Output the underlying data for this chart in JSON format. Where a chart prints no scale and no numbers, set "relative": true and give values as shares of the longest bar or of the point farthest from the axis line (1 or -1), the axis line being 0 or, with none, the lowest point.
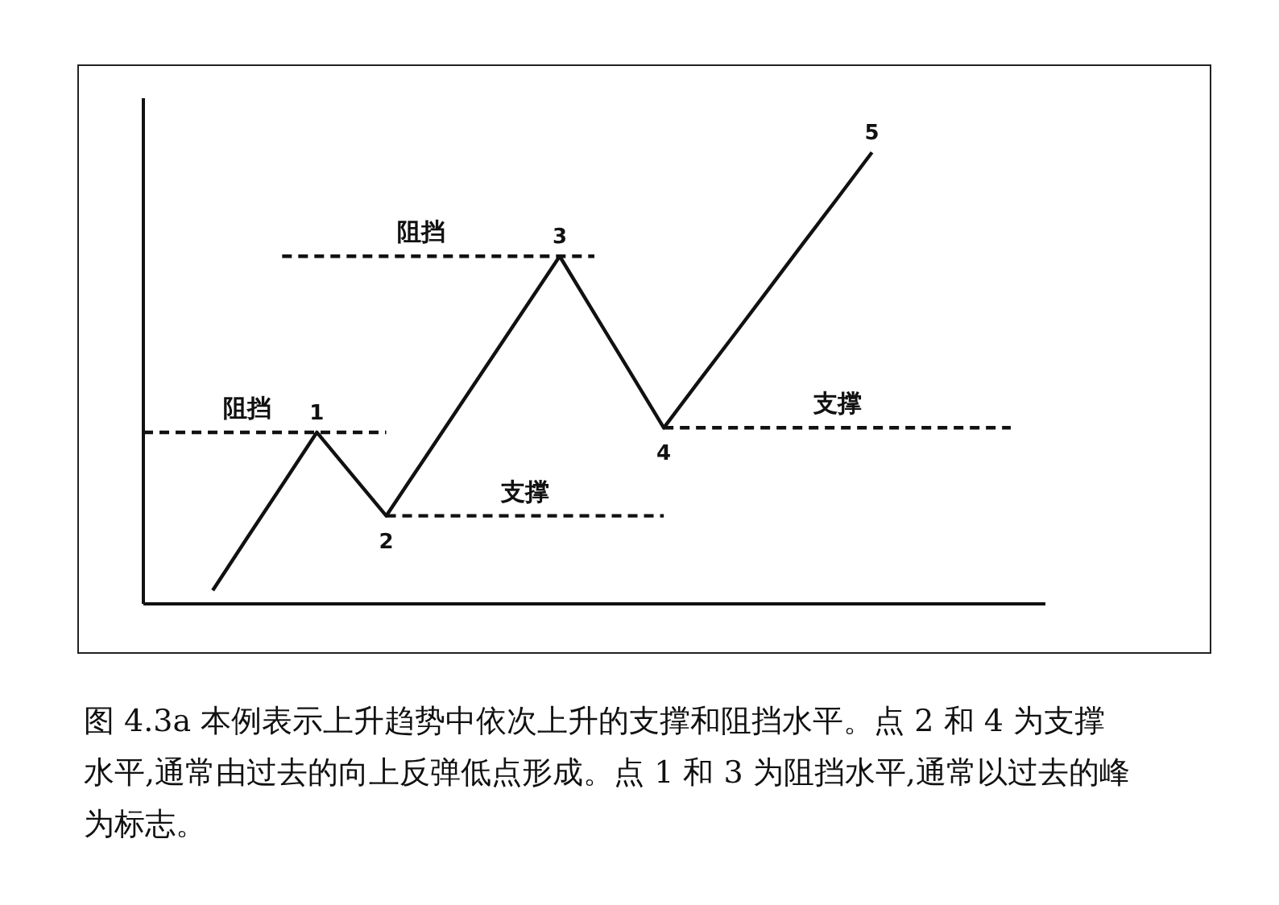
{
  "chart_data": {
    "type": "line",
    "relative": true,
    "grid": false,
    "legend": false,
    "marker": "none",
    "line_style": "solid",
    "categories": [
      null,
      null,
      null,
      null,
      null,
      null,
      null,
      null,
      null,
      null,
      null,
      null,
      null,
      null,
      null,
      null,
      null,
      null,
      null,
      null,
      null,
      null,
      null,
      null,
      null,
      null,
      null
    ],
    "series": [
      {
        "color": "#111111",
        "values": [
          null,
          null,
          0.03,
          0.147,
          0.263,
          0.38,
          0.2875,
          0.195,
          0.31,
          0.425,
          0.54,
          0.655,
          0.77,
          0.643,
          0.517,
          0.39,
          0.492,
          0.593,
          0.695,
          0.797,
          0.898,
          1,
          null,
          null,
          null,
          null,
          null
        ]
      },
      {
        "name": "阻挡",
        "color": "#111111",
        "line_style": "dashed",
        "values": [
          0.38,
          0.38,
          0.38,
          0.38,
          0.38,
          0.38,
          0.38,
          0.38,
          null,
          null,
          null,
          null,
          null,
          null,
          null,
          null,
          null,
          null,
          null,
          null,
          null,
          null,
          null,
          null,
          null,
          null,
          null
        ]
      },
      {
        "name": "阻挡",
        "color": "#111111",
        "line_style": "dashed",
        "values": [
          null,
          null,
          null,
          null,
          0.77,
          0.77,
          0.77,
          0.77,
          0.77,
          0.77,
          0.77,
          0.77,
          0.77,
          0.77,
          null,
          null,
          null,
          null,
          null,
          null,
          null,
          null,
          null,
          null,
          null,
          null,
          null
        ]
      },
      {
        "name": "支撑",
        "color": "#111111",
        "line_style": "dashed",
        "values": [
          null,
          null,
          null,
          null,
          null,
          null,
          null,
          0.195,
          0.195,
          0.195,
          0.195,
          0.195,
          0.195,
          0.195,
          0.195,
          0.195,
          null,
          null,
          null,
          null,
          null,
          null,
          null,
          null,
          null,
          null,
          null
        ]
      },
      {
        "name": "支撑",
        "color": "#111111",
        "line_style": "dashed",
        "values": [
          null,
          null,
          null,
          null,
          null,
          null,
          null,
          null,
          null,
          null,
          null,
          null,
          null,
          null,
          null,
          0.39,
          0.39,
          0.39,
          0.39,
          0.39,
          0.39,
          0.39,
          0.39,
          0.39,
          0.39,
          0.39,
          null
        ]
      }
    ],
    "annotations": [
      {
        "text": "1",
        "y": 0.38
      },
      {
        "text": "2",
        "y": 0.195
      },
      {
        "text": "3",
        "y": 0.77
      },
      {
        "text": "4",
        "y": 0.39
      },
      {
        "text": "5",
        "y": 1
      },
      "图 4.3a  本例表示上升趋势中依次上升的支撑和阻挡水平。点 2 和 4 为支撑水平,通常由过去的向上反弹低点形成。点 1 和 3 为阻挡水平,通常以过去的峰为标志。"
    ]
  }
}
